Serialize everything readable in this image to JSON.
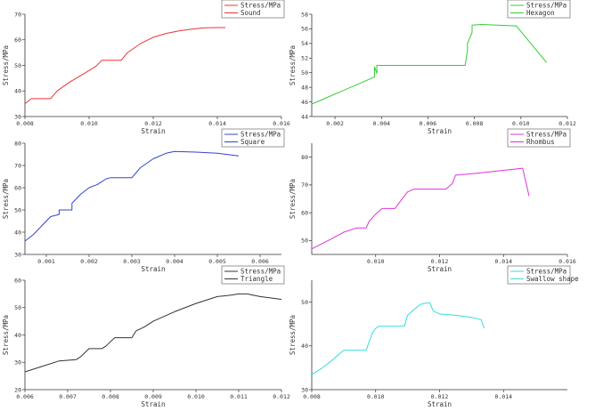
{
  "chart_data": [
    {
      "type": "line",
      "xlabel": "Strain",
      "ylabel": "Stress/MPa",
      "xlim": [
        0.008,
        0.016
      ],
      "ylim": [
        30,
        70
      ],
      "xticks": [
        "0.008",
        "0.010",
        "0.012",
        "0.014",
        "0.016"
      ],
      "yticks": [
        "30",
        "40",
        "50",
        "60",
        "70"
      ],
      "color": "#ee3333",
      "legend": [
        "Stress/MPa",
        "Sound"
      ],
      "series": [
        {
          "name": "Sound",
          "x": [
            0.008,
            0.0082,
            0.0088,
            0.009,
            0.0094,
            0.0098,
            0.0102,
            0.0104,
            0.011,
            0.0112,
            0.0116,
            0.012,
            0.0124,
            0.0128,
            0.0132,
            0.0136,
            0.014,
            0.01425
          ],
          "y": [
            35,
            37,
            37,
            40,
            43.5,
            46.5,
            49.5,
            52,
            52,
            55,
            58.5,
            61,
            62.5,
            63.5,
            64.2,
            64.7,
            64.8,
            64.8
          ]
        }
      ]
    },
    {
      "type": "line",
      "xlabel": "Strain",
      "ylabel": "Stress/MPa",
      "xlim": [
        0.001,
        0.012
      ],
      "ylim": [
        44,
        58
      ],
      "xticks": [
        "0.002",
        "0.004",
        "0.006",
        "0.008",
        "0.010",
        "0.012"
      ],
      "yticks": [
        "44",
        "46",
        "48",
        "50",
        "52",
        "54",
        "56",
        "58"
      ],
      "color": "#33cc33",
      "legend": [
        "Stress/MPa",
        "Hexagon"
      ],
      "series": [
        {
          "name": "Hexagon",
          "x": [
            0.001,
            0.0037,
            0.0037,
            0.0038,
            0.0038,
            0.0076,
            0.0077,
            0.0077,
            0.0079,
            0.0079,
            0.0083,
            0.0098,
            0.0111
          ],
          "y": [
            45.7,
            49.4,
            50.8,
            49.9,
            51.0,
            51.0,
            53.0,
            54.0,
            55.5,
            56.5,
            56.6,
            56.4,
            51.4
          ]
        }
      ]
    },
    {
      "type": "line",
      "xlabel": "Strain",
      "ylabel": "Stress/MPa",
      "xlim": [
        0.0005,
        0.0065
      ],
      "ylim": [
        30,
        80
      ],
      "xticks": [
        "0.001",
        "0.002",
        "0.003",
        "0.004",
        "0.005",
        "0.006"
      ],
      "yticks": [
        "30",
        "40",
        "50",
        "60",
        "70",
        "80"
      ],
      "color": "#3344cc",
      "legend": [
        "Stress/MPa",
        "Square"
      ],
      "series": [
        {
          "name": "Square",
          "x": [
            0.0005,
            0.0007,
            0.0009,
            0.0011,
            0.0013,
            0.0013,
            0.0016,
            0.0016,
            0.0018,
            0.002,
            0.0022,
            0.0024,
            0.0025,
            0.003,
            0.0032,
            0.0035,
            0.0038,
            0.004,
            0.0045,
            0.005,
            0.0055
          ],
          "y": [
            36,
            39,
            43,
            47,
            48,
            50,
            50,
            53,
            57,
            60,
            61.5,
            64,
            64.5,
            64.5,
            69,
            73,
            75.5,
            76.3,
            76,
            75.5,
            74.3
          ]
        }
      ]
    },
    {
      "type": "line",
      "xlabel": "Strain",
      "ylabel": "Stress/MPa",
      "xlim": [
        0.008,
        0.016
      ],
      "ylim": [
        45,
        85
      ],
      "xticks": [
        "0.010",
        "0.012",
        "0.014",
        "0.016"
      ],
      "yticks": [
        "50",
        "60",
        "70",
        "80"
      ],
      "color": "#dd33dd",
      "legend": [
        "Stress/MPa",
        "Rhombus"
      ],
      "series": [
        {
          "name": "Rhombus",
          "x": [
            0.008,
            0.0086,
            0.009,
            0.0094,
            0.0097,
            0.0098,
            0.01,
            0.0102,
            0.0106,
            0.0108,
            0.011,
            0.0112,
            0.0122,
            0.0124,
            0.0125,
            0.013,
            0.0138,
            0.0146,
            0.0148
          ],
          "y": [
            47,
            50.5,
            53,
            54.5,
            54.5,
            57,
            59.5,
            61.5,
            61.5,
            64.5,
            67.5,
            68.5,
            68.5,
            70.5,
            73.5,
            74,
            75,
            76,
            66
          ]
        }
      ]
    },
    {
      "type": "line",
      "xlabel": "Strain",
      "ylabel": "Stress/MPa",
      "xlim": [
        0.006,
        0.012
      ],
      "ylim": [
        20,
        60
      ],
      "xticks": [
        "0.006",
        "0.007",
        "0.008",
        "0.009",
        "0.010",
        "0.011",
        "0.012"
      ],
      "yticks": [
        "20",
        "30",
        "40",
        "50",
        "60"
      ],
      "color": "#333333",
      "legend": [
        "Stress/MPa",
        "Triangle"
      ],
      "series": [
        {
          "name": "Triangle",
          "x": [
            0.006,
            0.0064,
            0.0068,
            0.0072,
            0.0073,
            0.0075,
            0.0077,
            0.0078,
            0.0079,
            0.0081,
            0.0085,
            0.0086,
            0.0088,
            0.009,
            0.0095,
            0.01,
            0.0105,
            0.0108,
            0.011,
            0.0112,
            0.0115,
            0.012
          ],
          "y": [
            26.5,
            28.5,
            30.5,
            31,
            32,
            35,
            35,
            35,
            36,
            39,
            39,
            41.5,
            43,
            45,
            48.5,
            51.5,
            54,
            54.5,
            55,
            55,
            54,
            53
          ]
        }
      ]
    },
    {
      "type": "line",
      "xlabel": "Strain",
      "ylabel": "Stress/MPa",
      "xlim": [
        0.008,
        0.016
      ],
      "ylim": [
        30,
        55
      ],
      "xticks": [
        "0.008",
        "0.010",
        "0.012",
        "0.014"
      ],
      "yticks": [
        "30",
        "40",
        "50"
      ],
      "color": "#33dddd",
      "legend": [
        "Stress/MPa",
        "Swallow shape"
      ],
      "series": [
        {
          "name": "Swallow shape",
          "x": [
            0.008,
            0.0083,
            0.0086,
            0.009,
            0.0092,
            0.0097,
            0.0098,
            0.0099,
            0.01,
            0.0101,
            0.0109,
            0.011,
            0.0112,
            0.0114,
            0.0116,
            0.0117,
            0.0118,
            0.012,
            0.0125,
            0.013,
            0.0133,
            0.0134
          ],
          "y": [
            33.5,
            34.8,
            36.5,
            39,
            39,
            39,
            41,
            43,
            44,
            44.5,
            44.5,
            47,
            48.3,
            49.5,
            49.8,
            49.8,
            48,
            47.3,
            47,
            46.5,
            46,
            44
          ]
        }
      ]
    }
  ]
}
